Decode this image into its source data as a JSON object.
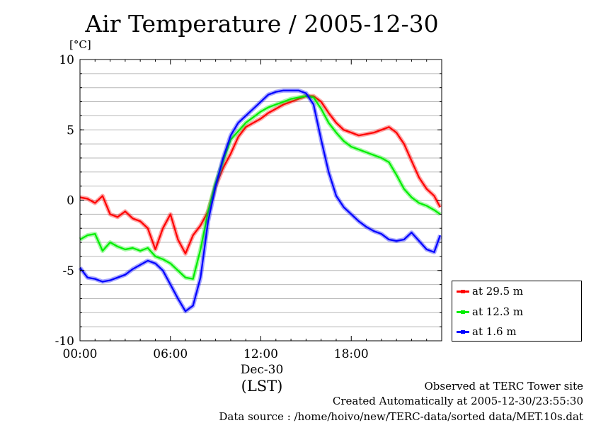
{
  "title": "Air Temperature / 2005-12-30",
  "unit_label": "[°C]",
  "x_date_label": "Dec-30",
  "x_zone_label": "(LST)",
  "footer": {
    "line1": "Observed at TERC Tower site",
    "line2": "Created Automatically at 2005-12-30/23:55:30",
    "line3": "Data source : /home/hoivo/new/TERC-data/sorted  data/MET.10s.dat"
  },
  "chart_data": {
    "type": "line",
    "title": "Air Temperature / 2005-12-30",
    "ylabel": "[°C]",
    "xlabel": "(LST)",
    "xlim": [
      0,
      24
    ],
    "ylim": [
      -10,
      10
    ],
    "x_ticks": [
      {
        "value": 0,
        "label": "00:00"
      },
      {
        "value": 6,
        "label": "06:00"
      },
      {
        "value": 12,
        "label": "12:00"
      },
      {
        "value": 18,
        "label": "18:00"
      }
    ],
    "y_ticks": [
      {
        "value": 10,
        "label": "10"
      },
      {
        "value": 5,
        "label": "5"
      },
      {
        "value": 0,
        "label": "0"
      },
      {
        "value": -5,
        "label": "-5"
      },
      {
        "value": -10,
        "label": "-10"
      }
    ],
    "grid": "horizontal every 1 °C",
    "legend_position": "right",
    "series": [
      {
        "name": "at 29.5 m",
        "color": "#ff0000",
        "x": [
          0,
          0.5,
          1,
          1.5,
          2,
          2.5,
          3,
          3.5,
          4,
          4.5,
          5,
          5.5,
          6,
          6.5,
          7,
          7.5,
          8,
          8.5,
          9,
          9.5,
          10,
          10.5,
          11,
          11.5,
          12,
          12.5,
          13,
          13.5,
          14,
          14.5,
          15,
          15.5,
          16,
          16.5,
          17,
          17.5,
          18,
          18.5,
          19,
          19.5,
          20,
          20.5,
          21,
          21.5,
          22,
          22.5,
          23,
          23.5,
          23.9
        ],
        "y": [
          0.2,
          0.1,
          -0.2,
          0.3,
          -1.0,
          -1.2,
          -0.8,
          -1.3,
          -1.5,
          -2.0,
          -3.5,
          -2.0,
          -1.0,
          -2.8,
          -3.8,
          -2.5,
          -1.8,
          -0.8,
          1.0,
          2.3,
          3.3,
          4.5,
          5.2,
          5.5,
          5.8,
          6.2,
          6.5,
          6.8,
          7.0,
          7.2,
          7.4,
          7.4,
          7.0,
          6.2,
          5.5,
          5.0,
          4.8,
          4.6,
          4.7,
          4.8,
          5.0,
          5.2,
          4.8,
          4.0,
          2.8,
          1.6,
          0.8,
          0.3,
          -0.5
        ]
      },
      {
        "name": "at 12.3 m",
        "color": "#00ee00",
        "x": [
          0,
          0.5,
          1,
          1.5,
          2,
          2.5,
          3,
          3.5,
          4,
          4.5,
          5,
          5.5,
          6,
          6.5,
          7,
          7.5,
          8,
          8.5,
          9,
          9.5,
          10,
          10.5,
          11,
          11.5,
          12,
          12.5,
          13,
          13.5,
          14,
          14.5,
          15,
          15.5,
          16,
          16.5,
          17,
          17.5,
          18,
          18.5,
          19,
          19.5,
          20,
          20.5,
          21,
          21.5,
          22,
          22.5,
          23,
          23.5,
          23.9
        ],
        "y": [
          -2.8,
          -2.5,
          -2.4,
          -3.6,
          -3.0,
          -3.3,
          -3.5,
          -3.4,
          -3.6,
          -3.4,
          -4.0,
          -4.2,
          -4.5,
          -5.0,
          -5.5,
          -5.6,
          -3.5,
          -0.8,
          1.2,
          2.8,
          4.3,
          4.9,
          5.5,
          5.9,
          6.3,
          6.6,
          6.8,
          7.0,
          7.2,
          7.3,
          7.4,
          7.3,
          6.5,
          5.5,
          4.8,
          4.2,
          3.8,
          3.6,
          3.4,
          3.2,
          3.0,
          2.7,
          1.8,
          0.8,
          0.2,
          -0.2,
          -0.4,
          -0.7,
          -1.0
        ]
      },
      {
        "name": "at 1.6 m",
        "color": "#0000ff",
        "x": [
          0,
          0.5,
          1,
          1.5,
          2,
          2.5,
          3,
          3.5,
          4,
          4.5,
          5,
          5.5,
          6,
          6.5,
          7,
          7.5,
          8,
          8.5,
          9,
          9.5,
          10,
          10.5,
          11,
          11.5,
          12,
          12.5,
          13,
          13.5,
          14,
          14.5,
          15,
          15.5,
          16,
          16.5,
          17,
          17.5,
          18,
          18.5,
          19,
          19.5,
          20,
          20.5,
          21,
          21.5,
          22,
          22.5,
          23,
          23.5,
          23.9
        ],
        "y": [
          -4.8,
          -5.5,
          -5.6,
          -5.8,
          -5.7,
          -5.5,
          -5.3,
          -4.9,
          -4.6,
          -4.3,
          -4.5,
          -5.0,
          -6.0,
          -7.0,
          -7.9,
          -7.5,
          -5.5,
          -1.5,
          1.0,
          3.0,
          4.6,
          5.5,
          6.0,
          6.5,
          7.0,
          7.5,
          7.7,
          7.8,
          7.8,
          7.8,
          7.6,
          6.8,
          4.3,
          2.0,
          0.3,
          -0.5,
          -1.0,
          -1.5,
          -1.9,
          -2.2,
          -2.4,
          -2.8,
          -2.9,
          -2.8,
          -2.3,
          -2.9,
          -3.5,
          -3.7,
          -2.5
        ]
      }
    ]
  }
}
